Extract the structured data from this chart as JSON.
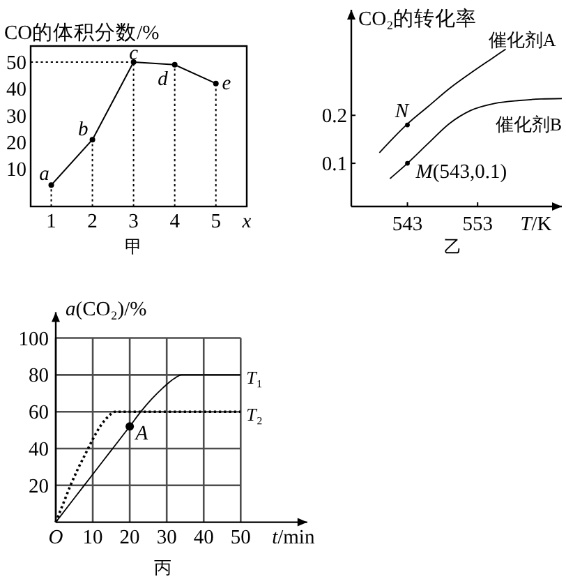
{
  "chart_data": [
    {
      "type": "line",
      "title": "甲",
      "xlabel": "x",
      "ylabel": "CO的体积分数/%",
      "x": [
        1,
        2,
        3,
        4,
        5
      ],
      "xlim": [
        0.5,
        5.75
      ],
      "xticks": [
        1,
        2,
        3,
        4,
        5
      ],
      "ylim": [
        -4,
        56
      ],
      "yticks": [
        10,
        20,
        30,
        40,
        50
      ],
      "marker": "circle",
      "series": [
        {
          "color": "#000000",
          "values": [
            4,
            21,
            50,
            49,
            42
          ]
        },
        {
          "color": "#000000",
          "x": [
            1,
            1
          ],
          "values": [
            -4,
            4
          ],
          "marker": "none",
          "line_style": "dotted"
        },
        {
          "color": "#000000",
          "x": [
            2,
            2
          ],
          "values": [
            -4,
            21
          ],
          "marker": "none",
          "line_style": "dotted"
        },
        {
          "color": "#000000",
          "x": [
            3,
            3
          ],
          "values": [
            -4,
            50
          ],
          "marker": "none",
          "line_style": "dotted"
        },
        {
          "color": "#000000",
          "x": [
            4,
            4
          ],
          "values": [
            -4,
            49
          ],
          "marker": "none",
          "line_style": "dotted"
        },
        {
          "color": "#000000",
          "x": [
            5,
            5
          ],
          "values": [
            -4,
            42
          ],
          "marker": "none",
          "line_style": "dotted"
        },
        {
          "color": "#000000",
          "x": [
            0.5,
            3
          ],
          "values": [
            50,
            50
          ],
          "marker": "none",
          "line_style": "dotted"
        }
      ],
      "annotations": [
        {
          "text": "a",
          "x": 1,
          "y": 4
        },
        {
          "text": "b",
          "x": 2,
          "y": 21
        },
        {
          "text": "c",
          "x": 3,
          "y": 50
        },
        {
          "text": "d",
          "x": 4,
          "y": 49
        },
        {
          "text": "e",
          "x": 5,
          "y": 42
        }
      ]
    },
    {
      "type": "line",
      "title": "乙",
      "xlabel": "T/K",
      "ylabel": "CO₂的转化率",
      "xlim": [
        535,
        565
      ],
      "xticks": [
        543,
        553
      ],
      "ylim": [
        0.01,
        0.42
      ],
      "yticks": [
        0.1,
        0.2
      ],
      "series": [
        {
          "name": "催化剂A",
          "color": "#000000",
          "x": [
            539,
            541,
            543,
            546,
            549,
            552.5,
            555,
            557
          ],
          "values": [
            0.122,
            0.153,
            0.182,
            0.219,
            0.256,
            0.293,
            0.318,
            0.338
          ]
        },
        {
          "name": "催化剂B",
          "color": "#000000",
          "x": [
            540.5,
            543,
            546,
            549,
            552,
            555.5,
            559,
            562,
            565
          ],
          "values": [
            0.068,
            0.1,
            0.142,
            0.183,
            0.21,
            0.225,
            0.231,
            0.234,
            0.235
          ]
        },
        {
          "type": "scatter",
          "color": "#000000",
          "x": [
            543,
            543
          ],
          "values": [
            0.18,
            0.1
          ]
        }
      ],
      "annotations": [
        {
          "text": "N",
          "x": 543,
          "y": 0.18
        },
        {
          "text": "M(543,0.1)",
          "x": 543,
          "y": 0.1
        }
      ]
    },
    {
      "type": "line",
      "title": "丙",
      "xlabel": "t/min",
      "ylabel": "a(CO₂)/%",
      "xlim": [
        0,
        68
      ],
      "xticks": [
        {
          "value": 0,
          "label": "O"
        },
        10,
        20,
        30,
        40,
        50
      ],
      "ylim": [
        0,
        114
      ],
      "yticks": [
        20,
        40,
        60,
        80,
        100
      ],
      "grid": true,
      "series": [
        {
          "name": "T₁",
          "color": "#000000",
          "x": [
            0,
            5,
            10,
            15,
            20,
            23,
            26,
            29,
            32,
            34,
            50
          ],
          "values": [
            0,
            13,
            26,
            39,
            52,
            60,
            67,
            73,
            78,
            80,
            80
          ]
        },
        {
          "name": "T₂",
          "color": "#000000",
          "line_style": "dotted",
          "x": [
            0,
            2,
            4,
            6,
            8,
            10,
            12,
            14,
            16,
            50
          ],
          "values": [
            0,
            10,
            20,
            29,
            37,
            45,
            52,
            57,
            60,
            60
          ]
        },
        {
          "type": "scatter",
          "color": "#000000",
          "x": [
            20
          ],
          "values": [
            52
          ]
        }
      ],
      "annotations": [
        {
          "text": "A",
          "x": 20,
          "y": 52
        }
      ]
    }
  ]
}
